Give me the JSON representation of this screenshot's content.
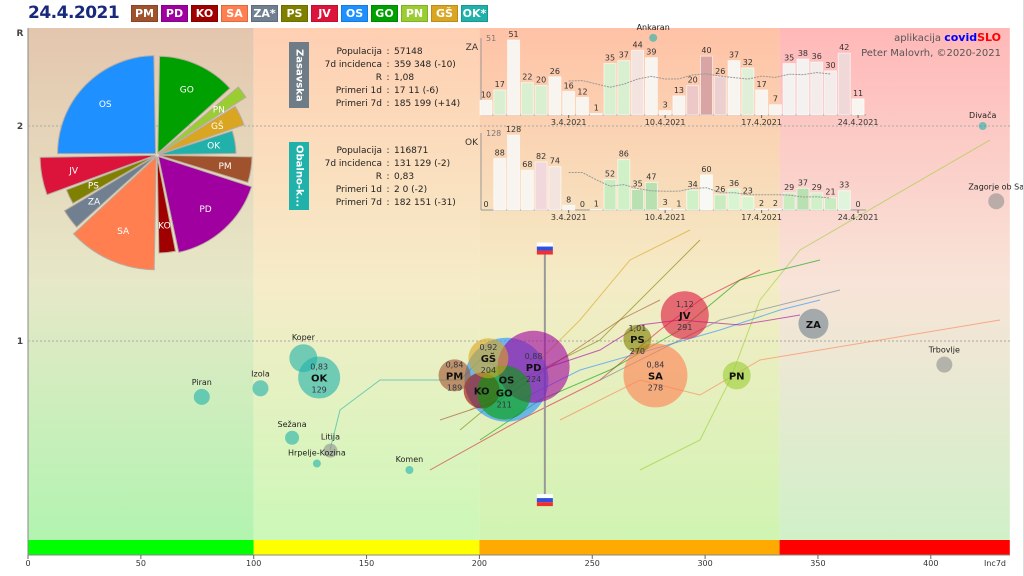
{
  "header": {
    "date": "24.4.2021",
    "legend": [
      {
        "label": "PM",
        "color": "#a0522d"
      },
      {
        "label": "PD",
        "color": "#a000a0"
      },
      {
        "label": "KO",
        "color": "#a00000"
      },
      {
        "label": "SA",
        "color": "#ff7f50"
      },
      {
        "label": "ZA*",
        "color": "#708090"
      },
      {
        "label": "PS",
        "color": "#808000"
      },
      {
        "label": "JV",
        "color": "#dc143c"
      },
      {
        "label": "OS",
        "color": "#1e90ff"
      },
      {
        "label": "GO",
        "color": "#00a000"
      },
      {
        "label": "PN",
        "color": "#9acd32"
      },
      {
        "label": "GŠ",
        "color": "#daa520"
      },
      {
        "label": "OK*",
        "color": "#20b2aa"
      }
    ]
  },
  "credit": {
    "prefix": "aplikacija ",
    "brand1": "covid",
    "brand2": "SLO",
    "author": "Peter Malovrh, ©2020-2021"
  },
  "panels": [
    {
      "tab": "Zasavska",
      "tab_color": "#6e7c88",
      "code": "ZA",
      "max_label": "51",
      "rows": [
        [
          "Populacija",
          "57148"
        ],
        [
          "7d incidenca",
          "359 348 (-10)"
        ],
        [
          "R",
          "1,08"
        ],
        [
          "Primeri 1d",
          "17 11 (-6)"
        ],
        [
          "Primeri 7d",
          "185 199 (+14)"
        ]
      ]
    },
    {
      "tab": "Obalno-k...",
      "tab_color": "#20b2aa",
      "code": "OK",
      "max_label": "128",
      "rows": [
        [
          "Populacija",
          "116871"
        ],
        [
          "7d incidenca",
          "131 129 (-2)"
        ],
        [
          "R",
          "0,83"
        ],
        [
          "Primeri 1d",
          "2 0 (-2)"
        ],
        [
          "Primeri 7d",
          "182 151 (-31)"
        ]
      ]
    }
  ],
  "chart_data": [
    {
      "type": "scatter",
      "title": "",
      "xlabel": "Inc7d",
      "ylabel": "R",
      "xlim": [
        0,
        435
      ],
      "ylim": [
        0,
        2.45
      ],
      "xticks": [
        "0",
        "50",
        "100",
        "150",
        "200",
        "250",
        "300",
        "350",
        "400"
      ],
      "yticks": [
        "1",
        "2"
      ],
      "grid": "dashed at R=1 and R=2",
      "zones": [
        {
          "from": 0,
          "to": 100,
          "color": "#00ff00"
        },
        {
          "from": 100,
          "to": 200,
          "color": "#ffff00"
        },
        {
          "from": 200,
          "to": 333,
          "color": "#ffaa00"
        },
        {
          "from": 333,
          "to": 435,
          "color": "#ff0000"
        }
      ],
      "regions": [
        {
          "name": "OS",
          "x": 212,
          "y": 0.82,
          "color": "#1e90ff",
          "r_text": "",
          "inc_text": ""
        },
        {
          "name": "PD",
          "x": 224,
          "y": 0.88,
          "color": "#a000a0",
          "r_text": "0,88",
          "inc_text": "224"
        },
        {
          "name": "KO",
          "x": 201,
          "y": 0.77,
          "color": "#a00000",
          "r_text": "",
          "inc_text": ""
        },
        {
          "name": "GO",
          "x": 211,
          "y": 0.76,
          "color": "#00a000",
          "r_text": "",
          "inc_text": "211"
        },
        {
          "name": "PM",
          "x": 189,
          "y": 0.84,
          "color": "#a0522d",
          "r_text": "0,84",
          "inc_text": "189"
        },
        {
          "name": "GŠ",
          "x": 204,
          "y": 0.92,
          "color": "#daa520",
          "r_text": "0,92",
          "inc_text": "204"
        },
        {
          "name": "SA",
          "x": 278,
          "y": 0.84,
          "color": "#ff7f50",
          "r_text": "0,84",
          "inc_text": "278"
        },
        {
          "name": "PS",
          "x": 270,
          "y": 1.01,
          "color": "#808000",
          "r_text": "1,01",
          "inc_text": "270"
        },
        {
          "name": "JV",
          "x": 291,
          "y": 1.12,
          "color": "#dc143c",
          "r_text": "1,12",
          "inc_text": "291"
        },
        {
          "name": "PN",
          "x": 314,
          "y": 0.84,
          "color": "#9acd32",
          "r_text": "",
          "inc_text": ""
        },
        {
          "name": "ZA",
          "x": 348,
          "y": 1.08,
          "color": "#708090",
          "r_text": "",
          "inc_text": ""
        },
        {
          "name": "OK",
          "x": 129,
          "y": 0.83,
          "color": "#20b2aa",
          "r_text": "0,83",
          "inc_text": "129"
        }
      ],
      "municipalities": [
        {
          "name": "Piran",
          "x": 77,
          "y": 0.74,
          "color": "#20b2aa"
        },
        {
          "name": "Izola",
          "x": 103,
          "y": 0.78,
          "color": "#20b2aa"
        },
        {
          "name": "Koper",
          "x": 122,
          "y": 0.92,
          "color": "#20b2aa"
        },
        {
          "name": "Sežana",
          "x": 117,
          "y": 0.55,
          "color": "#20b2aa"
        },
        {
          "name": "Litija",
          "x": 134,
          "y": 0.49,
          "color": "#909090"
        },
        {
          "name": "Hrpelje-Kozina",
          "x": 128,
          "y": 0.43,
          "color": "#20b2aa"
        },
        {
          "name": "Komen",
          "x": 169,
          "y": 0.4,
          "color": "#20b2aa"
        },
        {
          "name": "Ankaran",
          "x": 277,
          "y": 2.41,
          "color": "#20b2aa"
        },
        {
          "name": "Divača",
          "x": 423,
          "y": 2.0,
          "color": "#20b2aa"
        },
        {
          "name": "Zagorje ob Sa",
          "x": 429,
          "y": 1.65,
          "color": "#909090"
        },
        {
          "name": "Trbovlje",
          "x": 406,
          "y": 0.89,
          "color": "#909090"
        }
      ],
      "slovenia": {
        "x": 229,
        "y_high": 1.43,
        "y_low": 0.26
      }
    },
    {
      "type": "bar",
      "title": "ZA",
      "date_ticks": [
        {
          "label": "3.4.2021",
          "index": 6
        },
        {
          "label": "10.4.2021",
          "index": 13
        },
        {
          "label": "17.4.2021",
          "index": 20
        },
        {
          "label": "24.4.2021",
          "index": 27
        }
      ],
      "values": [
        10,
        17,
        51,
        22,
        20,
        26,
        16,
        12,
        1,
        35,
        37,
        44,
        39,
        3,
        13,
        20,
        40,
        26,
        37,
        32,
        17,
        7,
        35,
        38,
        36,
        30,
        42,
        11
      ],
      "colors": [
        "#f8f4f0",
        "#d8f0d0",
        "#f8f4f0",
        "#d8f0d0",
        "#d8f0d0",
        "#f8f4f0",
        "#f8f4f0",
        "#f8f4f0",
        "#f8f4f0",
        "#d8f0d0",
        "#d8f0d0",
        "#f4e4e0",
        "#f8f4f0",
        "#f8f4f0",
        "#f8f4f0",
        "#ecc8c8",
        "#d8a4a4",
        "#ecd0d0",
        "#f8f4f0",
        "#e0f0d8",
        "#f8f4f0",
        "#f8f4f0",
        "#f4f2f0",
        "#f4f2f0",
        "#f4ecea",
        "#f4ecea",
        "#f0d8d8",
        "#f8f4f0"
      ]
    },
    {
      "type": "bar",
      "title": "OK",
      "date_ticks": [
        {
          "label": "3.4.2021",
          "index": 6
        },
        {
          "label": "10.4.2021",
          "index": 13
        },
        {
          "label": "17.4.2021",
          "index": 20
        },
        {
          "label": "24.4.2021",
          "index": 27
        }
      ],
      "values": [
        0,
        88,
        128,
        68,
        82,
        74,
        8,
        0,
        1,
        52,
        86,
        35,
        47,
        3,
        1,
        34,
        60,
        26,
        36,
        23,
        2,
        2,
        29,
        37,
        29,
        21,
        33,
        0
      ],
      "colors": [
        "#f8f4f0",
        "#f8f4f0",
        "#f8f4f0",
        "#f8f4f0",
        "#f0d8dc",
        "#f4e4e0",
        "#f8f4f0",
        "#f8f4f0",
        "#f8f4f0",
        "#c8ecc0",
        "#d0f0c8",
        "#b8e0b0",
        "#b8e0b0",
        "#f8f4f0",
        "#f8f4f0",
        "#d0f0c8",
        "#f8f8f4",
        "#c8ecc0",
        "#d8f4d0",
        "#d8f4d0",
        "#f8f4f0",
        "#f8f4f0",
        "#c8ecc0",
        "#b8e0b0",
        "#d0f0c8",
        "#c8ecc0",
        "#e0f4dc",
        "#f8f4f0"
      ]
    }
  ]
}
